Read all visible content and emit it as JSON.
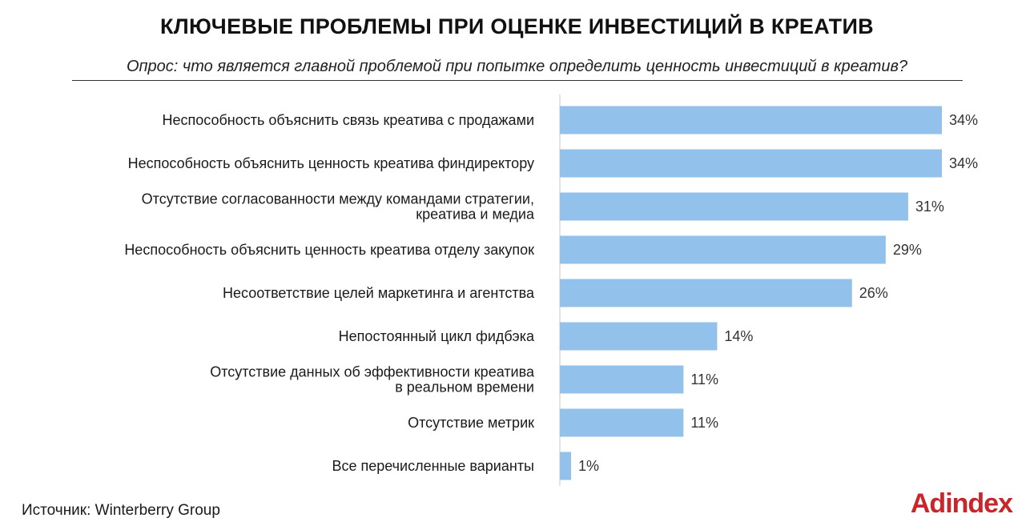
{
  "header": {
    "title": "КЛЮЧЕВЫЕ ПРОБЛЕМЫ ПРИ ОЦЕНКЕ ИНВЕСТИЦИЙ В КРЕАТИВ",
    "subtitle": "Опрос: что является главной проблемой при попытке определить ценность инвестиций в креатив?"
  },
  "footer": {
    "source": "Источник: Winterberry Group",
    "logo": "Adindex"
  },
  "colors": {
    "bar": "#92c1eb",
    "axis": "#c8c8c8",
    "logo": "#c8262b"
  },
  "chart_data": {
    "type": "bar",
    "orientation": "horizontal",
    "categories": [
      [
        "Неспособность объяснить связь креатива с продажами"
      ],
      [
        "Неспособность объяснить ценность креатива финдиректору"
      ],
      [
        "Отсутствие согласованности между командами стратегии,",
        "креатива и медиа"
      ],
      [
        "Неспособность объяснить ценность креатива отделу закупок"
      ],
      [
        "Несоответствие целей маркетинга и агентства"
      ],
      [
        "Непостоянный цикл фидбэка"
      ],
      [
        "Отсутствие данных об эффективности креатива",
        "в реальном времени"
      ],
      [
        "Отсутствие метрик"
      ],
      [
        "Все перечисленные варианты"
      ]
    ],
    "values": [
      34,
      34,
      31,
      29,
      26,
      14,
      11,
      11,
      1
    ],
    "value_labels": [
      "34%",
      "34%",
      "31%",
      "29%",
      "26%",
      "14%",
      "11%",
      "11%",
      "1%"
    ],
    "unit": "%",
    "xlim": [
      0,
      34
    ],
    "grid": false,
    "legend": "none"
  }
}
